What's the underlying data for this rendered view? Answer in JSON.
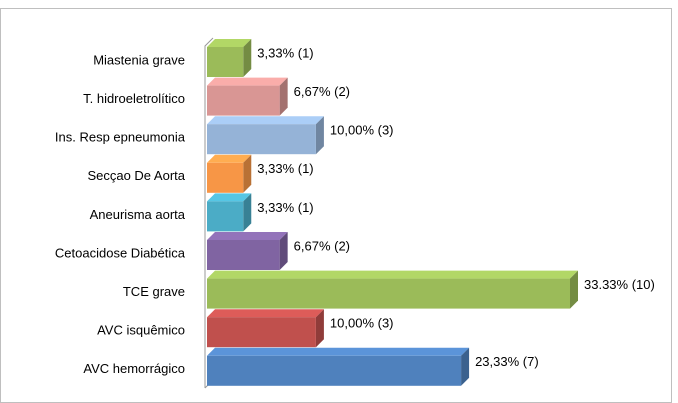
{
  "chart_data": {
    "type": "bar",
    "orientation": "horizontal",
    "categories": [
      "Miastenia grave",
      "T. hidroeletrolítico",
      "Ins. Resp epneumonia",
      "Secçao De Aorta",
      "Aneurisma aorta",
      "Cetoacidose Diabética",
      "TCE grave",
      "AVC isquêmico",
      "AVC hemorrágico"
    ],
    "values": [
      3.33,
      6.67,
      10,
      3.33,
      3.33,
      6.67,
      33.33,
      10,
      23.33
    ],
    "value_labels": [
      "3,33% (1)",
      "6,67% (2)",
      "10,00% (3)",
      "3,33% (1)",
      "3,33% (1)",
      "6,67% (2)",
      "33.33% (10)",
      "10,00% (3)",
      "23,33% (7)"
    ],
    "colors": [
      "#9bbb59",
      "#d99694",
      "#95b3d7",
      "#f79646",
      "#4bacc6",
      "#8064a2",
      "#9bbb59",
      "#c0504d",
      "#4f81bd"
    ]
  }
}
